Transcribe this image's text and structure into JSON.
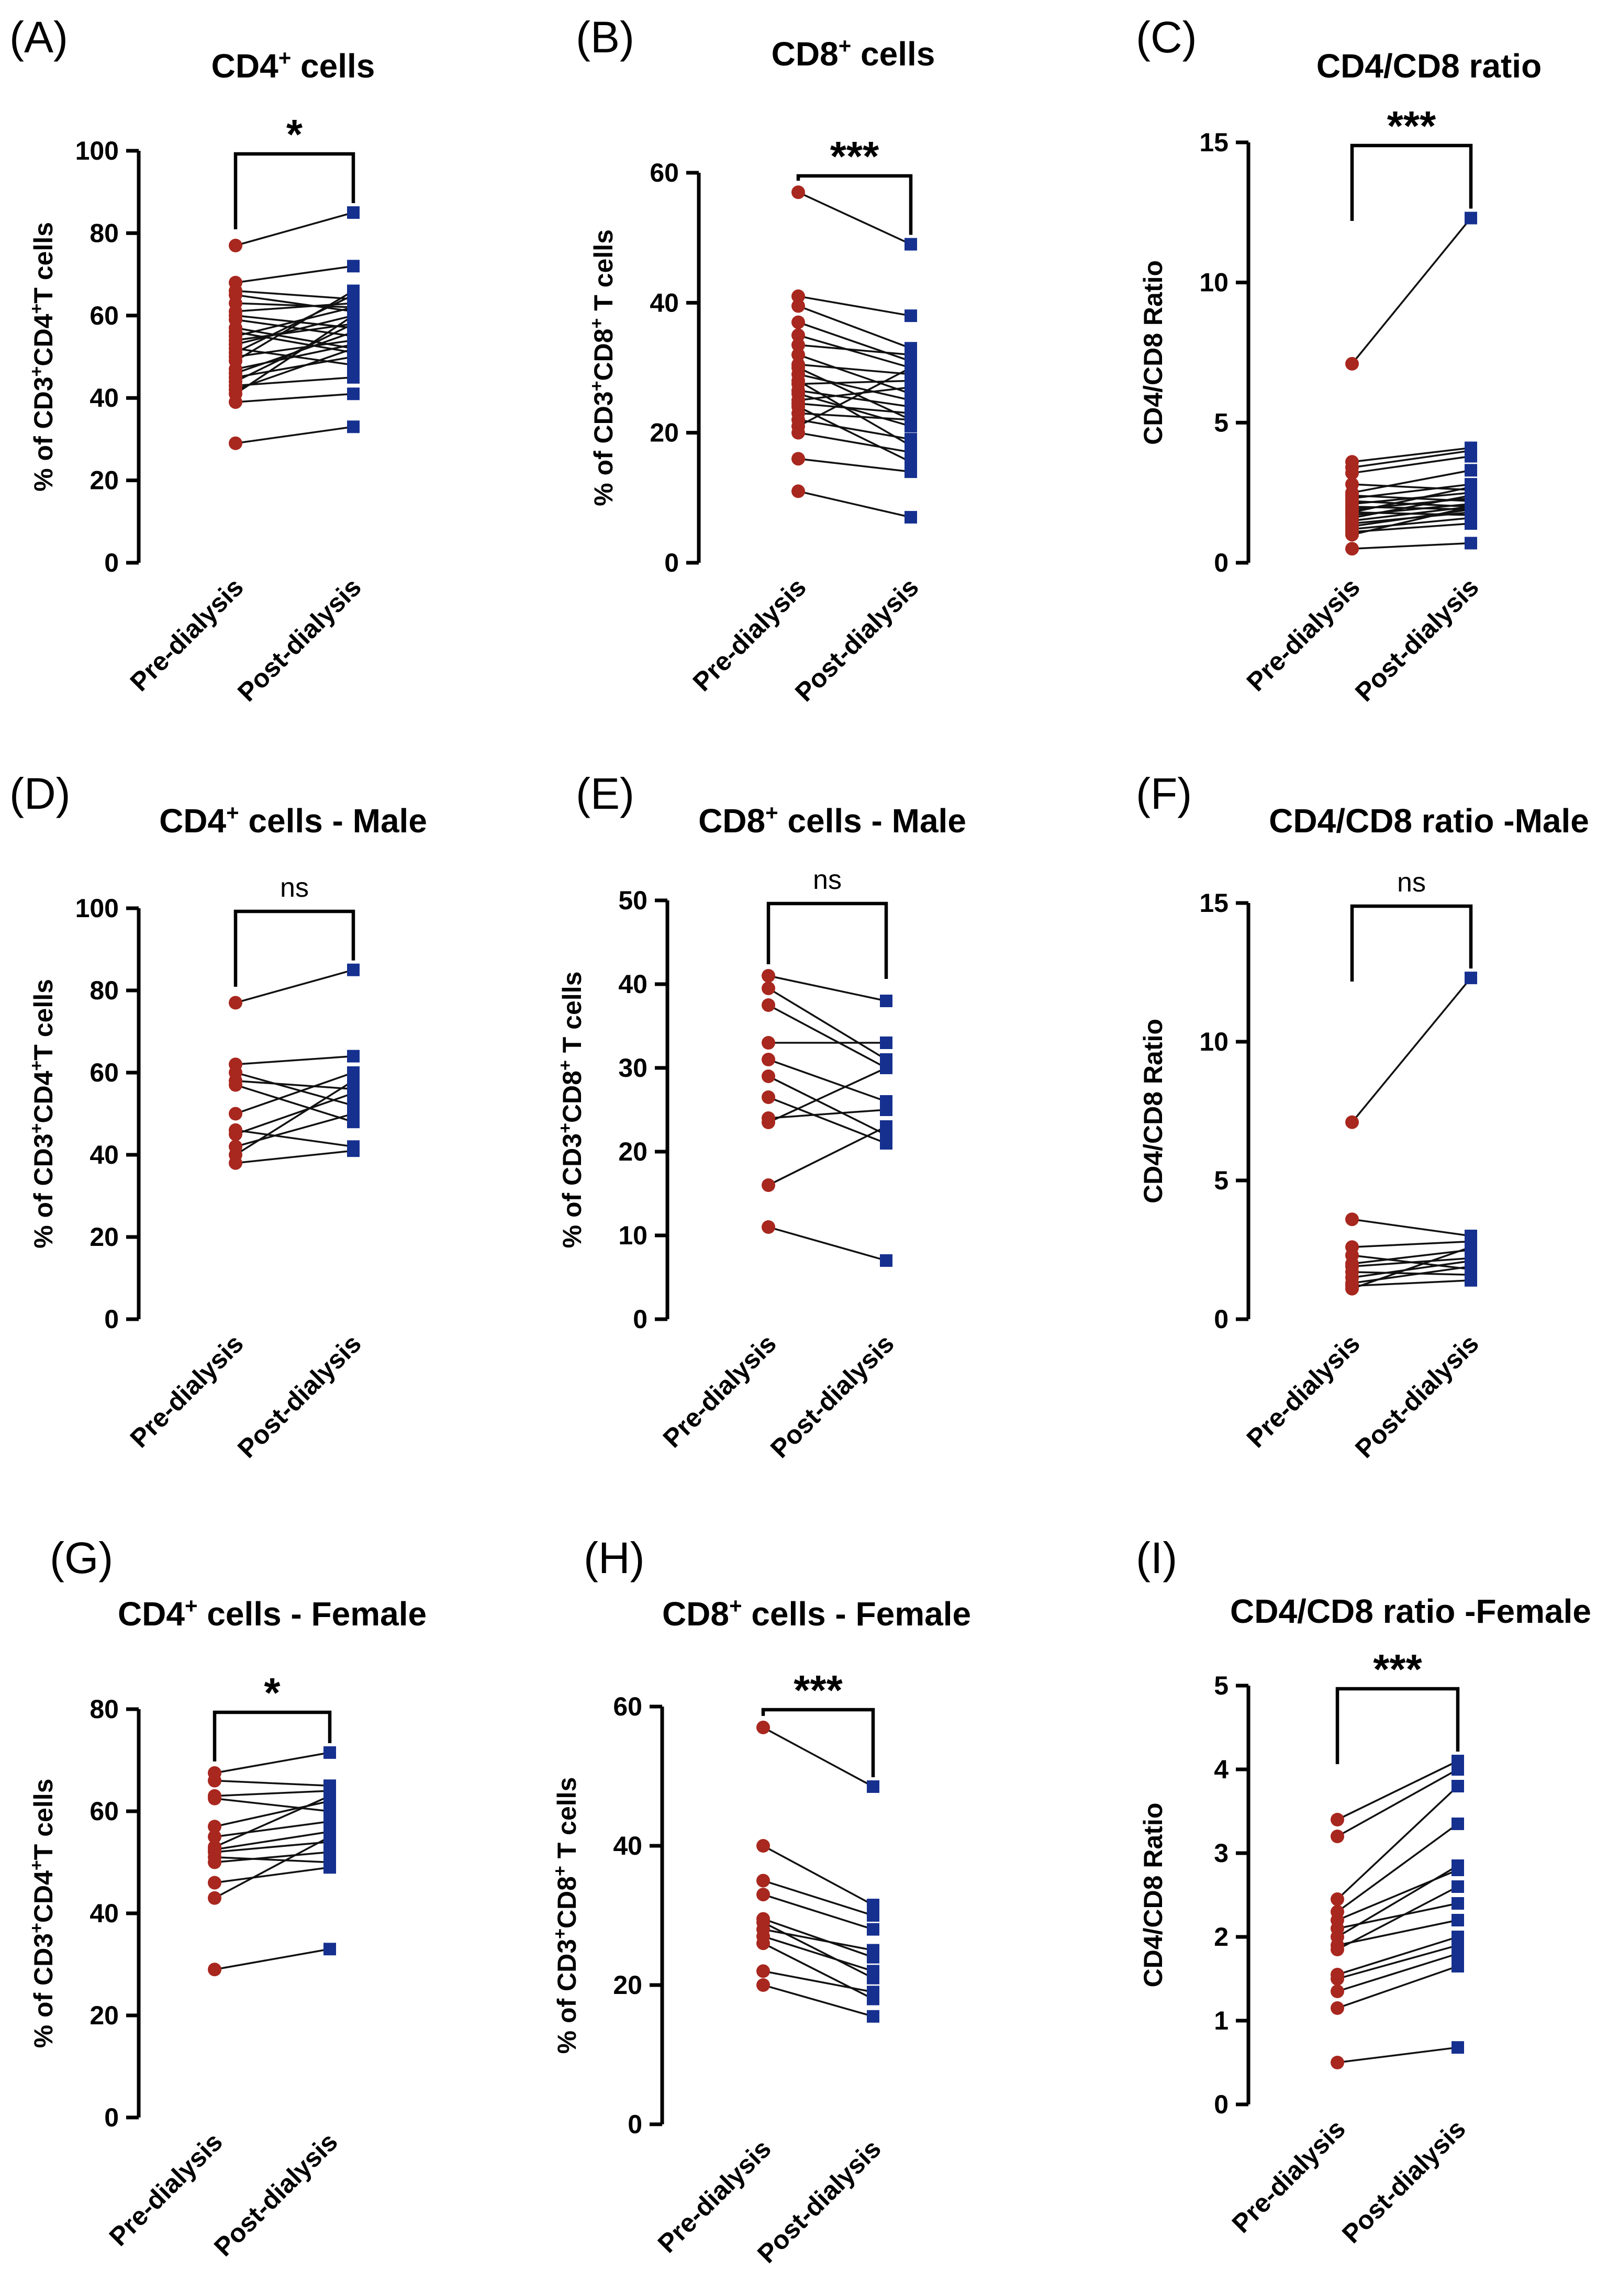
{
  "figure": {
    "category_labels": [
      "Pre-dialysis",
      "Post-dialysis"
    ],
    "colors": {
      "pre": "#a8271e",
      "post": "#15308f",
      "line": "#111111"
    }
  },
  "chart_data": [
    {
      "panel": "(A)",
      "type": "scatter",
      "subtype": "paired",
      "title": "CD4+ cells",
      "title_base": "CD4",
      "title_sup": "+",
      "title_rest": " cells",
      "ylabel_parts": [
        [
          "% of CD3",
          ""
        ],
        [
          "+",
          "sup"
        ],
        [
          "CD4",
          ""
        ],
        [
          "+",
          "sup"
        ],
        [
          "T cells",
          ""
        ]
      ],
      "xlabel": "",
      "categories": [
        "Pre-dialysis",
        "Post-dialysis"
      ],
      "ylim": [
        0,
        100
      ],
      "yticks": [
        0,
        20,
        40,
        60,
        80,
        100
      ],
      "significance": "*",
      "pairs": [
        [
          77,
          85
        ],
        [
          68,
          72
        ],
        [
          66,
          64
        ],
        [
          65,
          61
        ],
        [
          63,
          62
        ],
        [
          61,
          63
        ],
        [
          60,
          57
        ],
        [
          59,
          55
        ],
        [
          57,
          52
        ],
        [
          56,
          51
        ],
        [
          55,
          62
        ],
        [
          54,
          58
        ],
        [
          53,
          60
        ],
        [
          52,
          48
        ],
        [
          51,
          65
        ],
        [
          50,
          54
        ],
        [
          49,
          66
        ],
        [
          47,
          53
        ],
        [
          46,
          56
        ],
        [
          45,
          50
        ],
        [
          44,
          58
        ],
        [
          43,
          45
        ],
        [
          42,
          52
        ],
        [
          41,
          60
        ],
        [
          39,
          41
        ],
        [
          29,
          33
        ]
      ]
    },
    {
      "panel": "(B)",
      "type": "scatter",
      "subtype": "paired",
      "title": "CD8+ cells",
      "title_base": "CD8",
      "title_sup": "+",
      "title_rest": " cells",
      "ylabel_parts": [
        [
          "% of CD3",
          ""
        ],
        [
          "+",
          "sup"
        ],
        [
          "CD8",
          ""
        ],
        [
          "+",
          "sup"
        ],
        [
          " T cells",
          ""
        ]
      ],
      "xlabel": "",
      "categories": [
        "Pre-dialysis",
        "Post-dialysis"
      ],
      "ylim": [
        0,
        60
      ],
      "yticks": [
        0,
        20,
        40,
        60
      ],
      "significance": "***",
      "pairs": [
        [
          57,
          49
        ],
        [
          41,
          38
        ],
        [
          39.5,
          33
        ],
        [
          37,
          31
        ],
        [
          35,
          30
        ],
        [
          33.5,
          32
        ],
        [
          32,
          26
        ],
        [
          30.5,
          29
        ],
        [
          30,
          22
        ],
        [
          29,
          25
        ],
        [
          28,
          18
        ],
        [
          27.5,
          28
        ],
        [
          26.5,
          24
        ],
        [
          26,
          21
        ],
        [
          25,
          27
        ],
        [
          24.5,
          23
        ],
        [
          24,
          15.5
        ],
        [
          23,
          22
        ],
        [
          22,
          19
        ],
        [
          21,
          30
        ],
        [
          20,
          17
        ],
        [
          16,
          14
        ],
        [
          11,
          7
        ]
      ]
    },
    {
      "panel": "(C)",
      "type": "scatter",
      "subtype": "paired",
      "title": "CD4/CD8 ratio",
      "title_base": "CD4/CD8 ratio",
      "title_sup": "",
      "title_rest": "",
      "ylabel_parts": [
        [
          "CD4/CD8 Ratio",
          ""
        ]
      ],
      "xlabel": "",
      "categories": [
        "Pre-dialysis",
        "Post-dialysis"
      ],
      "ylim": [
        0,
        15
      ],
      "yticks": [
        0,
        5,
        10,
        15
      ],
      "significance": "***",
      "pairs": [
        [
          7.1,
          12.3
        ],
        [
          3.6,
          4.1
        ],
        [
          3.4,
          4.0
        ],
        [
          3.2,
          3.8
        ],
        [
          2.8,
          2.6
        ],
        [
          2.5,
          3.3
        ],
        [
          2.4,
          2.2
        ],
        [
          2.3,
          2.8
        ],
        [
          2.2,
          2.0
        ],
        [
          2.1,
          2.5
        ],
        [
          2.0,
          1.9
        ],
        [
          1.9,
          2.3
        ],
        [
          1.8,
          2.7
        ],
        [
          1.8,
          1.7
        ],
        [
          1.7,
          2.1
        ],
        [
          1.6,
          2.4
        ],
        [
          1.5,
          2.0
        ],
        [
          1.4,
          1.8
        ],
        [
          1.3,
          1.9
        ],
        [
          1.2,
          1.6
        ],
        [
          1.1,
          1.4
        ],
        [
          1.0,
          2.0
        ],
        [
          0.5,
          0.7
        ]
      ]
    },
    {
      "panel": "(D)",
      "type": "scatter",
      "subtype": "paired",
      "title": "CD4+ cells - Male",
      "title_base": "CD4",
      "title_sup": "+",
      "title_rest": " cells - Male",
      "ylabel_parts": [
        [
          "% of CD3",
          ""
        ],
        [
          "+",
          "sup"
        ],
        [
          "CD4",
          ""
        ],
        [
          "+",
          "sup"
        ],
        [
          "T cells",
          ""
        ]
      ],
      "xlabel": "",
      "categories": [
        "Pre-dialysis",
        "Post-dialysis"
      ],
      "ylim": [
        0,
        100
      ],
      "yticks": [
        0,
        20,
        40,
        60,
        80,
        100
      ],
      "significance": "ns",
      "pairs": [
        [
          77,
          85
        ],
        [
          62,
          64
        ],
        [
          60,
          52
        ],
        [
          58,
          56
        ],
        [
          57,
          48
        ],
        [
          50,
          60
        ],
        [
          46,
          42
        ],
        [
          45,
          55
        ],
        [
          42,
          50
        ],
        [
          40,
          58
        ],
        [
          38,
          41
        ]
      ]
    },
    {
      "panel": "(E)",
      "type": "scatter",
      "subtype": "paired",
      "title": "CD8+ cells - Male",
      "title_base": "CD8",
      "title_sup": "+",
      "title_rest": " cells - Male",
      "ylabel_parts": [
        [
          "% of CD3",
          ""
        ],
        [
          "+",
          "sup"
        ],
        [
          "CD8",
          ""
        ],
        [
          "+",
          "sup"
        ],
        [
          " T cells",
          ""
        ]
      ],
      "xlabel": "",
      "categories": [
        "Pre-dialysis",
        "Post-dialysis"
      ],
      "ylim": [
        0,
        50
      ],
      "yticks": [
        0,
        10,
        20,
        30,
        40,
        50
      ],
      "significance": "ns",
      "pairs": [
        [
          41,
          38
        ],
        [
          39.5,
          31
        ],
        [
          37.5,
          30
        ],
        [
          33,
          33
        ],
        [
          31,
          26
        ],
        [
          29,
          22
        ],
        [
          26.5,
          21
        ],
        [
          24,
          25
        ],
        [
          23.5,
          30
        ],
        [
          16,
          23
        ],
        [
          11,
          7
        ]
      ]
    },
    {
      "panel": "(F)",
      "type": "scatter",
      "subtype": "paired",
      "title": "CD4/CD8 ratio -Male",
      "title_base": "CD4/CD8 ratio -Male",
      "title_sup": "",
      "title_rest": "",
      "ylabel_parts": [
        [
          "CD4/CD8 Ratio",
          ""
        ]
      ],
      "xlabel": "",
      "categories": [
        "Pre-dialysis",
        "Post-dialysis"
      ],
      "ylim": [
        0,
        15
      ],
      "yticks": [
        0,
        5,
        10,
        15
      ],
      "significance": "ns",
      "pairs": [
        [
          7.1,
          12.3
        ],
        [
          3.6,
          3.0
        ],
        [
          2.6,
          2.8
        ],
        [
          2.3,
          1.8
        ],
        [
          2.0,
          2.5
        ],
        [
          1.9,
          2.2
        ],
        [
          1.7,
          1.6
        ],
        [
          1.5,
          2.1
        ],
        [
          1.3,
          1.9
        ],
        [
          1.2,
          1.4
        ],
        [
          1.1,
          2.6
        ]
      ]
    },
    {
      "panel": "(G)",
      "type": "scatter",
      "subtype": "paired",
      "title": "CD4+ cells - Female",
      "title_base": "CD4",
      "title_sup": "+",
      "title_rest": " cells - Female",
      "ylabel_parts": [
        [
          "% of CD3",
          ""
        ],
        [
          "+",
          "sup"
        ],
        [
          "CD4",
          ""
        ],
        [
          "+",
          "sup"
        ],
        [
          "T cells",
          ""
        ]
      ],
      "xlabel": "",
      "categories": [
        "Pre-dialysis",
        "Post-dialysis"
      ],
      "ylim": [
        0,
        80
      ],
      "yticks": [
        0,
        20,
        40,
        60,
        80
      ],
      "significance": "*",
      "pairs": [
        [
          67.5,
          71.5
        ],
        [
          66,
          65
        ],
        [
          63,
          64
        ],
        [
          62.5,
          60
        ],
        [
          57,
          62
        ],
        [
          55,
          58
        ],
        [
          53,
          63
        ],
        [
          52.5,
          56
        ],
        [
          52,
          54
        ],
        [
          51,
          50
        ],
        [
          50,
          52
        ],
        [
          46,
          49
        ],
        [
          43,
          55
        ],
        [
          29,
          33
        ]
      ]
    },
    {
      "panel": "(H)",
      "type": "scatter",
      "subtype": "paired",
      "title": "CD8+ cells - Female",
      "title_base": "CD8",
      "title_sup": "+",
      "title_rest": " cells - Female",
      "ylabel_parts": [
        [
          "% of CD3",
          ""
        ],
        [
          "+",
          "sup"
        ],
        [
          "CD8",
          ""
        ],
        [
          "+",
          "sup"
        ],
        [
          " T cells",
          ""
        ]
      ],
      "xlabel": "",
      "categories": [
        "Pre-dialysis",
        "Post-dialysis"
      ],
      "ylim": [
        0,
        60
      ],
      "yticks": [
        0,
        20,
        40,
        60
      ],
      "significance": "***",
      "pairs": [
        [
          57,
          48.5
        ],
        [
          40,
          31.5
        ],
        [
          35,
          30
        ],
        [
          33,
          28
        ],
        [
          29.5,
          24
        ],
        [
          29,
          21
        ],
        [
          28,
          25
        ],
        [
          27,
          22
        ],
        [
          26,
          18
        ],
        [
          22,
          19
        ],
        [
          20,
          15.5
        ]
      ]
    },
    {
      "panel": "(I)",
      "type": "scatter",
      "subtype": "paired",
      "title": "CD4/CD8 ratio -Female",
      "title_base": "CD4/CD8 ratio -Female",
      "title_sup": "",
      "title_rest": "",
      "ylabel_parts": [
        [
          "CD4/CD8 Ratio",
          ""
        ]
      ],
      "xlabel": "",
      "categories": [
        "Pre-dialysis",
        "Post-dialysis"
      ],
      "ylim": [
        0,
        5
      ],
      "yticks": [
        0,
        1,
        2,
        3,
        4,
        5
      ],
      "significance": "***",
      "pairs": [
        [
          3.4,
          4.1
        ],
        [
          3.2,
          4.0
        ],
        [
          2.45,
          3.8
        ],
        [
          2.3,
          3.35
        ],
        [
          2.2,
          2.8
        ],
        [
          2.1,
          2.4
        ],
        [
          2.0,
          2.85
        ],
        [
          1.9,
          2.2
        ],
        [
          1.85,
          2.6
        ],
        [
          1.55,
          2.0
        ],
        [
          1.5,
          1.9
        ],
        [
          1.35,
          1.8
        ],
        [
          1.15,
          1.65
        ],
        [
          0.5,
          0.68
        ]
      ]
    }
  ]
}
